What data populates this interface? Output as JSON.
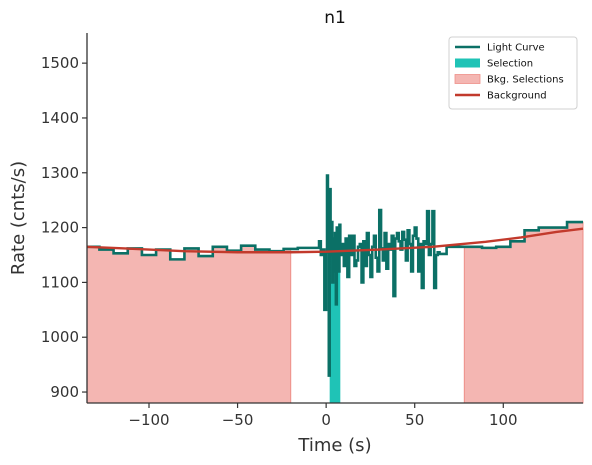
{
  "chart_data": {
    "type": "line",
    "title": "n1",
    "xlabel": "Time (s)",
    "ylabel": "Rate (cnts/s)",
    "xlim": [
      -135,
      145
    ],
    "ylim": [
      880,
      1555
    ],
    "xticks": [
      -100,
      -50,
      0,
      50,
      100
    ],
    "xtick_labels": [
      "−100",
      "−50",
      "0",
      "50",
      "100"
    ],
    "yticks": [
      900,
      1000,
      1100,
      1200,
      1300,
      1400,
      1500
    ],
    "ytick_labels": [
      "900",
      "1000",
      "1100",
      "1200",
      "1300",
      "1400",
      "1500"
    ],
    "grid": false,
    "legend_position": "top-right",
    "colors": {
      "light_curve": "#0b7066",
      "selection": "#1fc3b6",
      "bkg_fill": "#f4b6b2",
      "bkg_edge": "#ee8f88",
      "background": "#c23a2c",
      "axis": "#333333"
    },
    "legend": [
      {
        "label": "Light Curve",
        "kind": "line",
        "color": "#0b7066"
      },
      {
        "label": "Selection",
        "kind": "patch",
        "color": "#1fc3b6"
      },
      {
        "label": "Bkg. Selections",
        "kind": "patch",
        "color": "#f4b6b2"
      },
      {
        "label": "Background",
        "kind": "line",
        "color": "#c23a2c"
      }
    ],
    "bkg_selections": [
      [
        -135,
        -20
      ],
      [
        78,
        145
      ]
    ],
    "selection": [
      [
        2,
        8
      ]
    ],
    "background_fit": {
      "x": [
        -135,
        -100,
        -80,
        -50,
        -20,
        0,
        30,
        60,
        90,
        110,
        130,
        145
      ],
      "y": [
        1165,
        1160,
        1157,
        1155,
        1155,
        1156,
        1160,
        1165,
        1174,
        1182,
        1192,
        1198
      ]
    },
    "light_curve": {
      "x": [
        -135,
        -128,
        -120,
        -112,
        -104,
        -96,
        -88,
        -80,
        -72,
        -64,
        -56,
        -48,
        -40,
        -32,
        -24,
        -16,
        -8,
        -4,
        -3,
        -2,
        -1,
        0,
        0.5,
        1,
        1.5,
        2,
        2.5,
        3,
        3.5,
        4,
        4.5,
        5,
        5.5,
        6,
        6.5,
        7,
        7.5,
        8,
        9,
        10,
        11,
        12,
        13,
        14,
        15,
        16,
        17,
        18,
        19,
        20,
        21,
        22,
        23,
        24,
        25,
        26,
        27,
        28,
        29,
        30,
        31,
        32,
        33,
        34,
        35,
        36,
        37,
        38,
        39,
        40,
        41,
        42,
        43,
        44,
        45,
        46,
        47,
        48,
        49,
        50,
        51,
        52,
        53,
        54,
        55,
        56,
        57,
        58,
        59,
        60,
        61,
        62,
        63,
        64,
        68,
        72,
        80,
        88,
        96,
        104,
        112,
        120,
        128,
        136,
        145
      ],
      "y": [
        1165,
        1160,
        1153,
        1162,
        1150,
        1160,
        1142,
        1162,
        1148,
        1165,
        1158,
        1167,
        1160,
        1157,
        1161,
        1163,
        1163,
        1175,
        1150,
        1160,
        1050,
        1155,
        1295,
        1180,
        930,
        1270,
        1150,
        1210,
        1100,
        1180,
        1120,
        1190,
        1060,
        1200,
        1170,
        1120,
        1205,
        1150,
        1170,
        1130,
        1180,
        1110,
        1185,
        1150,
        1185,
        1130,
        1140,
        1165,
        1170,
        1100,
        1175,
        1130,
        1190,
        1150,
        1110,
        1165,
        1185,
        1145,
        1120,
        1232,
        1162,
        1140,
        1190,
        1125,
        1170,
        1160,
        1185,
        1075,
        1180,
        1190,
        1175,
        1160,
        1192,
        1178,
        1140,
        1195,
        1170,
        1120,
        1185,
        1200,
        1180,
        1120,
        1170,
        1090,
        1175,
        1170,
        1230,
        1150,
        1170,
        1230,
        1090,
        1150,
        1155,
        1152,
        1165,
        1165,
        1165,
        1163,
        1165,
        1175,
        1195,
        1200,
        1200,
        1210,
        1210
      ]
    }
  }
}
